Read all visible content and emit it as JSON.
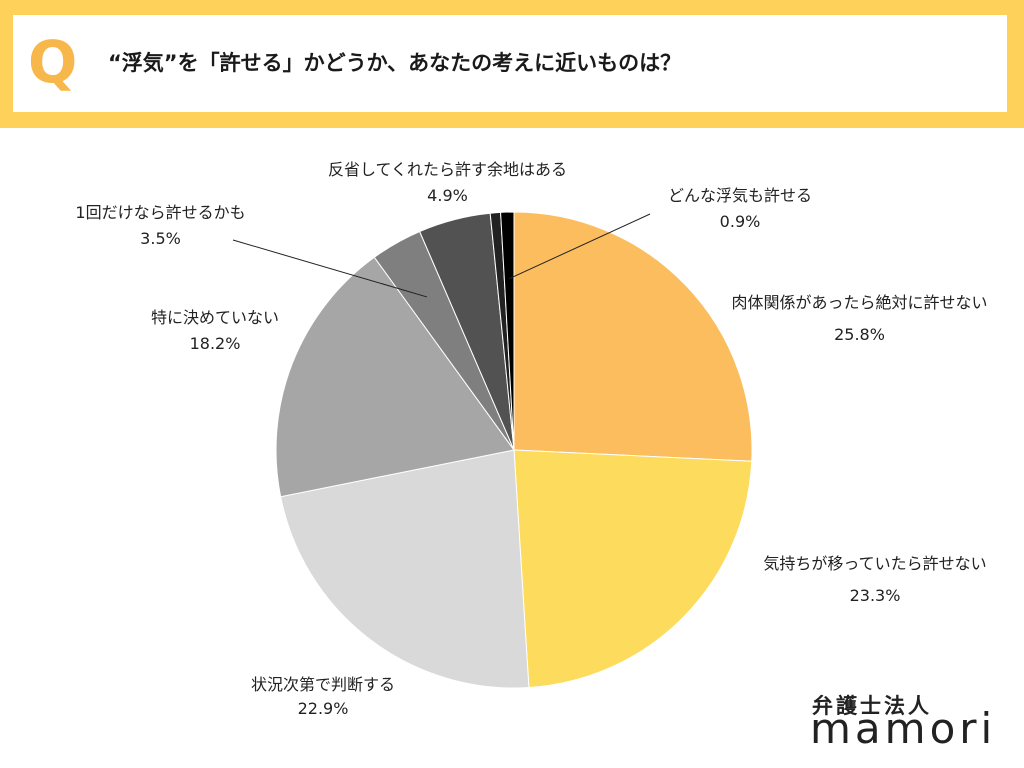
{
  "header": {
    "q_mark": "Q",
    "question": "“浮気”を「許せる」かどうか、あなたの考えに近いものは？"
  },
  "chart_data": {
    "type": "pie",
    "title": "“浮気”を「許せる」かどうか、あなたの考えに近いものは？",
    "start": "12 o'clock, clockwise",
    "slices": [
      {
        "label": "肉体関係があったら絶対に許せない",
        "value": 25.8,
        "value_label": "25.8%",
        "color": "#fbbd5e"
      },
      {
        "label": "気持ちが移っていたら許せない",
        "value": 23.3,
        "value_label": "23.3%",
        "color": "#fddb5c"
      },
      {
        "label": "状況次第で判断する",
        "value": 22.9,
        "value_label": "22.9%",
        "color": "#d9d9d9"
      },
      {
        "label": "特に決めていない",
        "value": 18.2,
        "value_label": "18.2%",
        "color": "#a6a6a6"
      },
      {
        "label": "1回だけなら許せるかも",
        "value": 3.5,
        "value_label": "3.5%",
        "color": "#7f7f7f"
      },
      {
        "label": "反省してくれたら許す余地はある",
        "value": 4.9,
        "value_label": "4.9%",
        "color": "#525252"
      },
      {
        "label": "",
        "value": 0.7,
        "value_label": "",
        "color": "#222222"
      },
      {
        "label": "どんな浮気も許せる",
        "value": 0.9,
        "value_label": "0.9%",
        "color": "#000000"
      }
    ]
  },
  "footer": {
    "firm": "弁護士法人",
    "brand": "mamori"
  }
}
